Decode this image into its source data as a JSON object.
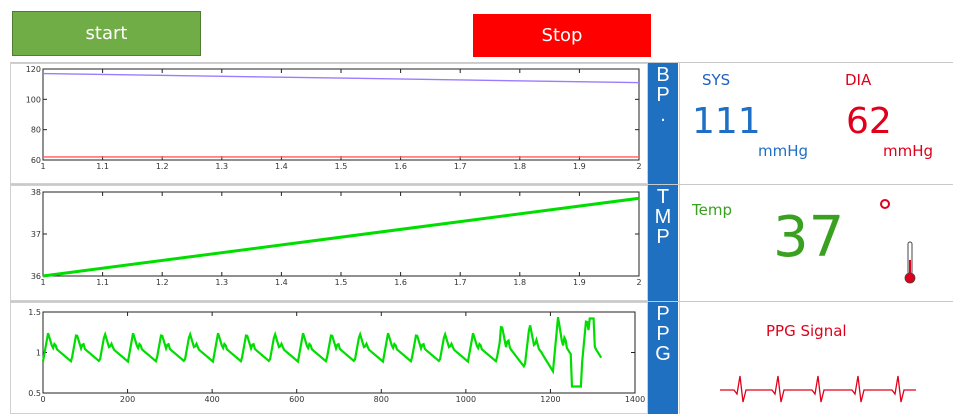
{
  "controls": {
    "start_label": "start",
    "stop_label": "Stop"
  },
  "tabs": {
    "bp": [
      "B",
      "P",
      "."
    ],
    "tmp": [
      "T",
      "M",
      "P"
    ],
    "ppg": [
      "P",
      "P",
      "G"
    ]
  },
  "bp_panel": {
    "sys_label": "SYS",
    "sys_value": "111",
    "sys_unit": "mmHg",
    "dia_label": "DIA",
    "dia_value": "62",
    "dia_unit": "mmHg"
  },
  "temp_panel": {
    "label": "Temp",
    "value": "37",
    "degree_icon": "degree-circle-icon",
    "thermometer_icon": "thermometer-icon"
  },
  "ppg_panel": {
    "label": "PPG Signal",
    "ecg_icon": "ecg-waveform-icon"
  },
  "colors": {
    "start_button": "#70ad47",
    "stop_button": "#ff0000",
    "tab_blue": "#1f70c1",
    "sys_blue": "#1f6fc5",
    "dia_red": "#e0001b",
    "temp_green": "#3aa020",
    "trace_green": "#00dd00",
    "bp_sys_line": "#9b7bff",
    "bp_dia_line": "#ff5a5a"
  },
  "chart_data": [
    {
      "type": "line",
      "xlim": [
        1,
        2
      ],
      "ylim": [
        60,
        120
      ],
      "xticks": [
        "1",
        "1.1",
        "1.2",
        "1.3",
        "1.4",
        "1.5",
        "1.6",
        "1.7",
        "1.8",
        "1.9",
        "2"
      ],
      "yticks": [
        "60",
        "80",
        "100",
        "120"
      ],
      "series": [
        {
          "x": [
            1,
            1.5,
            2
          ],
          "values": [
            117,
            114,
            111
          ]
        },
        {
          "x": [
            1,
            1.5,
            2
          ],
          "values": [
            62,
            62,
            62
          ]
        }
      ]
    },
    {
      "type": "line",
      "xlim": [
        1,
        2
      ],
      "ylim": [
        36,
        38
      ],
      "xticks": [
        "1",
        "1.1",
        "1.2",
        "1.3",
        "1.4",
        "1.5",
        "1.6",
        "1.7",
        "1.8",
        "1.9",
        "2"
      ],
      "yticks": [
        "36",
        "37",
        "38"
      ],
      "series": [
        {
          "x": [
            1,
            2
          ],
          "values": [
            36,
            37.85
          ]
        }
      ]
    },
    {
      "type": "line",
      "xlim": [
        0,
        1400
      ],
      "ylim": [
        0.5,
        1.5
      ],
      "xticks": [
        "0",
        "200",
        "400",
        "600",
        "800",
        "1000",
        "1200",
        "1400"
      ],
      "yticks": [
        "0.5",
        "1",
        "1.5"
      ],
      "series": [
        {
          "name": "",
          "period": 67,
          "x_end": 1320
        }
      ]
    }
  ]
}
